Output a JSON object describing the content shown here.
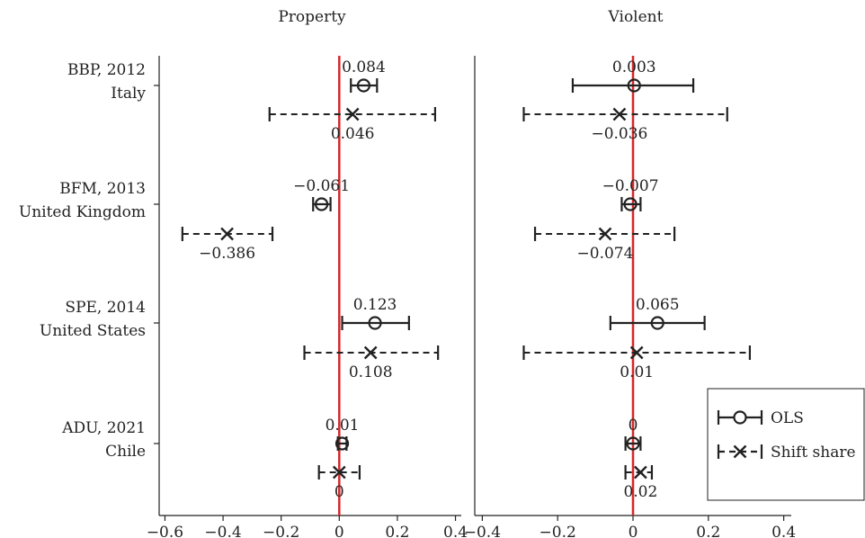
{
  "chart_data": [
    {
      "type": "scatter",
      "title": "Property",
      "xlim": [
        -0.62,
        0.42
      ],
      "xticks": [
        -0.6,
        -0.4,
        -0.2,
        0,
        0.2,
        0.4
      ],
      "xtick_labels": [
        "−0.6",
        "−0.4",
        "−0.2",
        "0",
        "0.2",
        "0.4"
      ],
      "reference_line": 0,
      "studies": [
        {
          "label1": "BBP, 2012",
          "label2": "Italy",
          "ols": {
            "est": 0.084,
            "lo": 0.04,
            "hi": 0.13,
            "label": "0.084"
          },
          "shift": {
            "est": 0.046,
            "lo": -0.24,
            "hi": 0.33,
            "label": "0.046"
          }
        },
        {
          "label1": "BFM, 2013",
          "label2": "United Kingdom",
          "ols": {
            "est": -0.061,
            "lo": -0.09,
            "hi": -0.03,
            "label": "−0.061"
          },
          "shift": {
            "est": -0.386,
            "lo": -0.54,
            "hi": -0.23,
            "label": "−0.386"
          }
        },
        {
          "label1": "SPE, 2014",
          "label2": "United States",
          "ols": {
            "est": 0.123,
            "lo": 0.01,
            "hi": 0.24,
            "label": "0.123"
          },
          "shift": {
            "est": 0.108,
            "lo": -0.12,
            "hi": 0.34,
            "label": "0.108"
          }
        },
        {
          "label1": "ADU, 2021",
          "label2": "Chile",
          "ols": {
            "est": 0.01,
            "lo": -0.005,
            "hi": 0.025,
            "label": "0.01"
          },
          "shift": {
            "est": 0,
            "lo": -0.07,
            "hi": 0.07,
            "label": "0"
          }
        }
      ]
    },
    {
      "type": "scatter",
      "title": "Violent",
      "xlim": [
        -0.42,
        0.42
      ],
      "xticks": [
        -0.4,
        -0.2,
        0,
        0.2,
        0.4
      ],
      "xtick_labels": [
        "−0.4",
        "−0.2",
        "0",
        "0.2",
        "0.4"
      ],
      "reference_line": 0,
      "studies": [
        {
          "ols": {
            "est": 0.003,
            "lo": -0.16,
            "hi": 0.16,
            "label": "0.003"
          },
          "shift": {
            "est": -0.036,
            "lo": -0.29,
            "hi": 0.25,
            "label": "−0.036"
          }
        },
        {
          "ols": {
            "est": -0.007,
            "lo": -0.03,
            "hi": 0.02,
            "label": "−0.007"
          },
          "shift": {
            "est": -0.074,
            "lo": -0.26,
            "hi": 0.11,
            "label": "−0.074"
          }
        },
        {
          "ols": {
            "est": 0.065,
            "lo": -0.06,
            "hi": 0.19,
            "label": "0.065"
          },
          "shift": {
            "est": 0.01,
            "lo": -0.29,
            "hi": 0.31,
            "label": "0.01"
          }
        },
        {
          "ols": {
            "est": 0,
            "lo": -0.02,
            "hi": 0.02,
            "label": "0"
          },
          "shift": {
            "est": 0.02,
            "lo": -0.02,
            "hi": 0.05,
            "label": "0.02"
          }
        }
      ]
    }
  ],
  "legend": {
    "position": "right",
    "items": [
      {
        "key": "ols",
        "label": "OLS",
        "marker": "circle",
        "line": "solid"
      },
      {
        "key": "shift",
        "label": "Shift share",
        "marker": "x",
        "line": "dashed"
      }
    ]
  },
  "colors": {
    "estimate": "#222222",
    "reference_line": "#d62728"
  }
}
